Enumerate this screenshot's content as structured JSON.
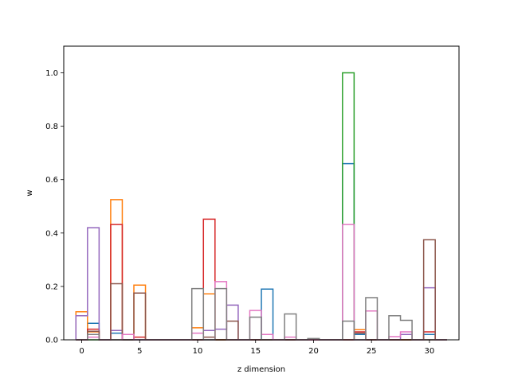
{
  "chart_data": {
    "type": "bar",
    "style": "step-outline",
    "title": "",
    "xlabel": "z dimension",
    "ylabel": "w",
    "xlim": [
      -1.55,
      32.55
    ],
    "ylim": [
      0,
      1.1
    ],
    "xticks": [
      0,
      5,
      10,
      15,
      20,
      25,
      30
    ],
    "yticks": [
      0.0,
      0.2,
      0.4,
      0.6,
      0.8,
      1.0
    ],
    "grid": false,
    "legend": "none",
    "series": [
      {
        "color": "#1f77b4",
        "values": [
          0.0,
          0.062,
          0.0,
          0.025,
          0.0,
          0.0,
          0.0,
          0.0,
          0.0,
          0.0,
          0.0,
          0.0,
          0.0,
          0.0,
          0.0,
          0.0,
          0.19,
          0.0,
          0.0,
          0.0,
          0.0,
          0.0,
          0.0,
          0.66,
          0.02,
          0.0,
          0.0,
          0.0,
          0.0,
          0.0,
          0.02,
          0.0
        ]
      },
      {
        "color": "#ff7f0e",
        "values": [
          0.105,
          0.03,
          0.0,
          0.525,
          0.0,
          0.205,
          0.0,
          0.0,
          0.0,
          0.0,
          0.045,
          0.172,
          0.0,
          0.0,
          0.0,
          0.0,
          0.0,
          0.0,
          0.0,
          0.0,
          0.0,
          0.0,
          0.0,
          0.0,
          0.038,
          0.0,
          0.0,
          0.0,
          0.0,
          0.0,
          0.0,
          0.0
        ]
      },
      {
        "color": "#2ca02c",
        "values": [
          0.0,
          0.0,
          0.0,
          0.0,
          0.0,
          0.0,
          0.0,
          0.0,
          0.0,
          0.0,
          0.0,
          0.0,
          0.0,
          0.0,
          0.0,
          0.0,
          0.0,
          0.0,
          0.0,
          0.0,
          0.0,
          0.0,
          0.0,
          1.0,
          0.0,
          0.0,
          0.0,
          0.0,
          0.0,
          0.0,
          0.0,
          0.0
        ]
      },
      {
        "color": "#d62728",
        "values": [
          0.0,
          0.04,
          0.0,
          0.432,
          0.0,
          0.01,
          0.0,
          0.0,
          0.0,
          0.0,
          0.0,
          0.452,
          0.0,
          0.0,
          0.0,
          0.0,
          0.0,
          0.0,
          0.0,
          0.0,
          0.0,
          0.0,
          0.0,
          0.0,
          0.03,
          0.0,
          0.0,
          0.0,
          0.0,
          0.0,
          0.03,
          0.0
        ]
      },
      {
        "color": "#9467bd",
        "values": [
          0.09,
          0.42,
          0.0,
          0.035,
          0.0,
          0.0,
          0.0,
          0.0,
          0.0,
          0.0,
          0.0,
          0.035,
          0.04,
          0.13,
          0.0,
          0.0,
          0.0,
          0.0,
          0.0,
          0.0,
          0.0,
          0.0,
          0.0,
          0.0,
          0.0,
          0.0,
          0.0,
          0.0,
          0.02,
          0.0,
          0.195,
          0.0
        ]
      },
      {
        "color": "#8c564b",
        "values": [
          0.0,
          0.032,
          0.0,
          0.21,
          0.0,
          0.175,
          0.0,
          0.0,
          0.0,
          0.0,
          0.0,
          0.01,
          0.0,
          0.07,
          0.0,
          0.0,
          0.0,
          0.0,
          0.0,
          0.0,
          0.0,
          0.0,
          0.0,
          0.0,
          0.025,
          0.0,
          0.0,
          0.0,
          0.0,
          0.0,
          0.375,
          0.0
        ]
      },
      {
        "color": "#e377c2",
        "values": [
          0.0,
          0.01,
          0.0,
          0.0,
          0.02,
          0.0,
          0.0,
          0.0,
          0.0,
          0.0,
          0.025,
          0.0,
          0.218,
          0.0,
          0.0,
          0.11,
          0.02,
          0.0,
          0.01,
          0.0,
          0.0,
          0.0,
          0.0,
          0.432,
          0.0,
          0.108,
          0.0,
          0.012,
          0.03,
          0.0,
          0.0,
          0.0
        ]
      },
      {
        "color": "#7f7f7f",
        "values": [
          0.0,
          0.02,
          0.0,
          0.0,
          0.0,
          0.0,
          0.0,
          0.0,
          0.0,
          0.0,
          0.192,
          0.0,
          0.192,
          0.0,
          0.0,
          0.085,
          0.0,
          0.0,
          0.097,
          0.0,
          0.005,
          0.0,
          0.0,
          0.07,
          0.0,
          0.158,
          0.0,
          0.09,
          0.073,
          0.0,
          0.0,
          0.0
        ]
      }
    ]
  }
}
